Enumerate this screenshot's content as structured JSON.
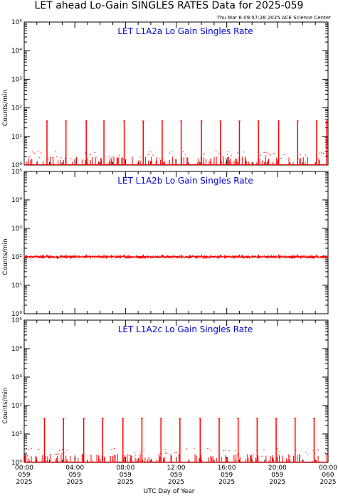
{
  "header": {
    "title": "LET ahead Lo-Gain SINGLES RATES Data for 2025-059",
    "timestamp": "Thu Mar  6 09:57:28 2025 ACE Science Center"
  },
  "x_axis": {
    "label": "UTC Day of Year",
    "ticks": [
      {
        "hours": 0,
        "time": "00:00",
        "doy": "059",
        "year": "2025"
      },
      {
        "hours": 4,
        "time": "04:00",
        "doy": "059",
        "year": "2025"
      },
      {
        "hours": 8,
        "time": "08:00",
        "doy": "059",
        "year": "2025"
      },
      {
        "hours": 12,
        "time": "12:00",
        "doy": "059",
        "year": "2025"
      },
      {
        "hours": 16,
        "time": "16:00",
        "doy": "059",
        "year": "2025"
      },
      {
        "hours": 20,
        "time": "20:00",
        "doy": "059",
        "year": "2025"
      },
      {
        "hours": 24,
        "time": "00:00",
        "doy": "060",
        "year": "2025"
      }
    ]
  },
  "colors": {
    "data": "#ff0000",
    "panel_title": "#0000cc",
    "axes": "#000000"
  },
  "chart_data": [
    {
      "type": "line",
      "title": "LET L1A2a Lo Gain Singles Rate",
      "ylabel": "Counts/min",
      "yscale": "log",
      "ylim": [
        1,
        100000
      ],
      "xlim": [
        0,
        24
      ],
      "ytick_labels": [
        "10⁰",
        "10¹",
        "10²",
        "10³",
        "10⁴",
        "10⁵"
      ],
      "baseline": 1.0,
      "spike_times_hr": [
        1.8,
        3.3,
        4.9,
        6.3,
        7.9,
        9.4,
        10.9,
        12.4,
        14.0,
        15.5,
        17.0,
        18.5,
        20.1,
        21.6,
        23.1,
        23.9
      ],
      "spike_peak": 35,
      "noise_max": 2
    },
    {
      "type": "line",
      "title": "LET L1A2b Lo Gain Singles Rate",
      "ylabel": "Counts/min",
      "yscale": "log",
      "ylim": [
        1,
        100000
      ],
      "xlim": [
        0,
        24
      ],
      "ytick_labels": [
        "10⁰",
        "10¹",
        "10²",
        "10³",
        "10⁴",
        "10⁵"
      ],
      "baseline": 100,
      "spike_times_hr": [
        1.8,
        3.3,
        4.9,
        6.3,
        7.9,
        9.4,
        10.9,
        12.4,
        14.0,
        15.5,
        17.0,
        18.5,
        20.1,
        21.6,
        23.1
      ],
      "spike_peak": 120,
      "noise_max": 108
    },
    {
      "type": "line",
      "title": "LET L1A2c Lo Gain Singles Rate",
      "ylabel": "Counts/min",
      "yscale": "log",
      "ylim": [
        1,
        100000
      ],
      "xlim": [
        0,
        24
      ],
      "ytick_labels": [
        "10⁰",
        "10¹",
        "10²",
        "10³",
        "10⁴",
        "10⁵"
      ],
      "baseline": 1.0,
      "spike_times_hr": [
        1.6,
        3.1,
        4.7,
        6.2,
        7.8,
        9.3,
        10.8,
        12.3,
        13.9,
        15.4,
        16.9,
        18.4,
        19.9,
        21.4,
        22.9
      ],
      "spike_peak": 35,
      "noise_max": 2
    }
  ]
}
